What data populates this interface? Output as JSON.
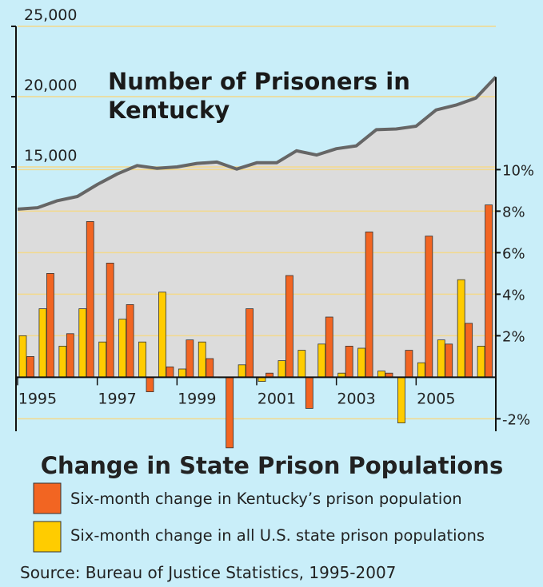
{
  "chart_data": {
    "type": "bar",
    "title": "Change in State Prison Populations",
    "source": "Source: Bureau of Justice Statistics, 1995-2007",
    "categories": [
      "1995",
      null,
      null,
      null,
      "1997",
      null,
      null,
      null,
      "1999",
      null,
      null,
      null,
      "2001",
      null,
      null,
      null,
      "2003",
      null,
      null,
      null,
      "2005",
      null,
      null,
      null
    ],
    "series": [
      {
        "name": "Six-month change in all U.S. state prison populations",
        "color": "#ffcc00",
        "axis": "y2",
        "values": [
          2.0,
          3.3,
          1.5,
          3.3,
          1.7,
          2.8,
          1.7,
          4.1,
          0.4,
          1.7,
          0,
          0.6,
          -0.2,
          0.8,
          1.3,
          1.6,
          0.2,
          1.4,
          0.3,
          -2.2,
          0.7,
          1.8,
          4.7,
          1.5
        ]
      },
      {
        "name": "Six-month change in Kentucky’s prison population",
        "color": "#f26522",
        "axis": "y2",
        "values": [
          1.0,
          5.0,
          2.1,
          7.5,
          5.5,
          3.5,
          -0.7,
          0.5,
          1.8,
          0.9,
          -3.4,
          3.3,
          0.2,
          4.9,
          -1.5,
          2.9,
          1.5,
          7.0,
          0.2,
          1.3,
          6.8,
          1.6,
          2.6,
          8.3
        ]
      }
    ],
    "area": {
      "type": "area",
      "name": "Number of Prisoners in Kentucky",
      "axis": "y",
      "color": "#666666",
      "fill": "#dcdcdc",
      "values": [
        12000,
        12100,
        12600,
        12900,
        13750,
        14500,
        15100,
        14900,
        15000,
        15250,
        15350,
        14850,
        15300,
        15300,
        16150,
        15850,
        16300,
        16500,
        17650,
        17700,
        17900,
        19050,
        19400,
        19900,
        21400
      ]
    },
    "ylim": [
      -3800,
      25000
    ],
    "yticks": [
      {
        "value": 25000,
        "label": "25,000"
      },
      {
        "value": 20000,
        "label": "20,000"
      },
      {
        "value": 15000,
        "label": "15,000"
      }
    ],
    "y2lim": [
      -2.6,
      16.9
    ],
    "y2ticks": [
      {
        "value": 10,
        "label": "10%"
      },
      {
        "value": 8,
        "label": "8%"
      },
      {
        "value": 6,
        "label": "6%"
      },
      {
        "value": 4,
        "label": "4%"
      },
      {
        "value": 2,
        "label": "2%"
      },
      {
        "value": -2,
        "label": "-2%"
      }
    ],
    "grid": true
  }
}
